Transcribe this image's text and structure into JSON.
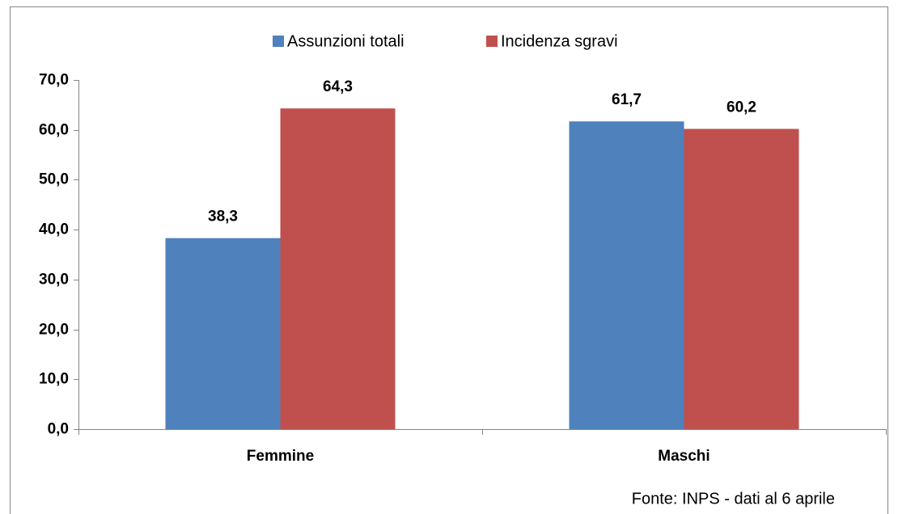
{
  "chart_data": {
    "type": "bar",
    "categories": [
      "Femmine",
      "Maschi"
    ],
    "series": [
      {
        "name": "Assunzioni totali",
        "color": "#4f81bd",
        "values": [
          38.3,
          61.7
        ],
        "value_labels": [
          "38,3",
          "61,7"
        ]
      },
      {
        "name": "Incidenza sgravi",
        "color": "#c0504d",
        "values": [
          64.3,
          60.2
        ],
        "value_labels": [
          "64,3",
          "60,2"
        ]
      }
    ],
    "ylim": [
      0,
      70
    ],
    "yticks": [
      {
        "value": 0,
        "label": "0,0"
      },
      {
        "value": 10,
        "label": "10,0"
      },
      {
        "value": 20,
        "label": "20,0"
      },
      {
        "value": 30,
        "label": "30,0"
      },
      {
        "value": 40,
        "label": "40,0"
      },
      {
        "value": 50,
        "label": "50,0"
      },
      {
        "value": 60,
        "label": "60,0"
      },
      {
        "value": 70,
        "label": "70,0"
      }
    ],
    "legend": "top",
    "grid": false,
    "annotation": "Fonte: INPS - dati al 6 aprile"
  }
}
